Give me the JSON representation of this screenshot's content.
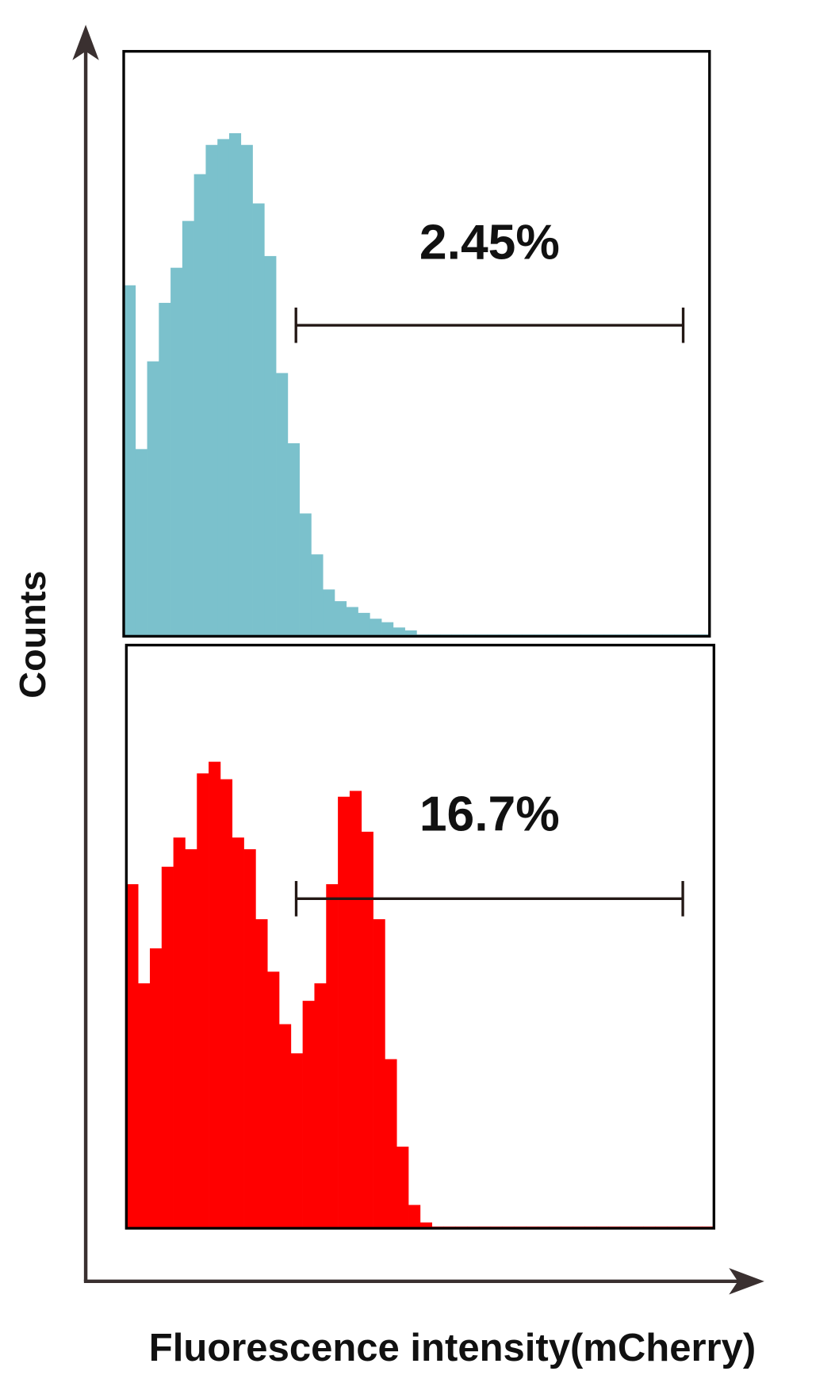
{
  "axes": {
    "ylabel": "Counts",
    "xlabel": "Fluorescence intensity(mCherry)"
  },
  "chart_data": [
    {
      "type": "histogram",
      "color": "#7bc1cc",
      "xlim": [
        0,
        100
      ],
      "ylim": [
        0,
        100
      ],
      "bins": [
        0,
        2,
        4,
        6,
        8,
        10,
        12,
        14,
        16,
        18,
        20,
        22,
        24,
        26,
        28,
        30,
        32,
        34,
        36,
        38,
        40,
        42,
        44,
        46,
        48,
        50,
        52,
        54,
        56,
        58,
        60,
        62,
        64,
        66,
        68,
        70,
        72,
        74,
        76,
        78,
        80,
        82,
        84,
        86,
        88,
        90,
        92,
        94,
        96,
        98,
        100
      ],
      "values": [
        60,
        32,
        47,
        57,
        63,
        71,
        79,
        84,
        85,
        86,
        84,
        74,
        65,
        45,
        33,
        21,
        14,
        8,
        6,
        5,
        4,
        3,
        2.4,
        1.5,
        1,
        0.3,
        0.3,
        0.3,
        0.3,
        0.3,
        0.3,
        0.3,
        0.3,
        0.3,
        0.3,
        0.3,
        0.3,
        0.3,
        0.3,
        0.3,
        0.3,
        0.3,
        0.3,
        0.3,
        0.3,
        0.3,
        0.3,
        0.3,
        0.3,
        0.3
      ],
      "gate": [
        29.4,
        95.5
      ],
      "gate_label": "2.45%"
    },
    {
      "type": "histogram",
      "color": "#ff0000",
      "xlim": [
        0,
        100
      ],
      "ylim": [
        0,
        100
      ],
      "bins": [
        0,
        2,
        4,
        6,
        8,
        10,
        12,
        14,
        16,
        18,
        20,
        22,
        24,
        26,
        28,
        30,
        32,
        34,
        36,
        38,
        40,
        42,
        44,
        46,
        48,
        50,
        52,
        54,
        56,
        58,
        60,
        62,
        64,
        66,
        68,
        70,
        72,
        74,
        76,
        78,
        80,
        82,
        84,
        86,
        88,
        90,
        92,
        94,
        96,
        98,
        100
      ],
      "values": [
        59,
        42,
        48,
        62,
        67,
        65,
        78,
        80,
        77,
        67,
        65,
        53,
        44,
        35,
        30,
        39,
        42,
        59,
        74,
        75,
        68,
        53,
        29,
        14,
        4,
        1,
        0.3,
        0.3,
        0.3,
        0.3,
        0.3,
        0.3,
        0.3,
        0.3,
        0.3,
        0.3,
        0.3,
        0.3,
        0.3,
        0.3,
        0.3,
        0.3,
        0.3,
        0.3,
        0.3,
        0.3,
        0.3,
        0.3,
        0.3,
        0.3
      ],
      "gate": [
        28.9,
        94.7
      ],
      "gate_label": "16.7%"
    }
  ]
}
